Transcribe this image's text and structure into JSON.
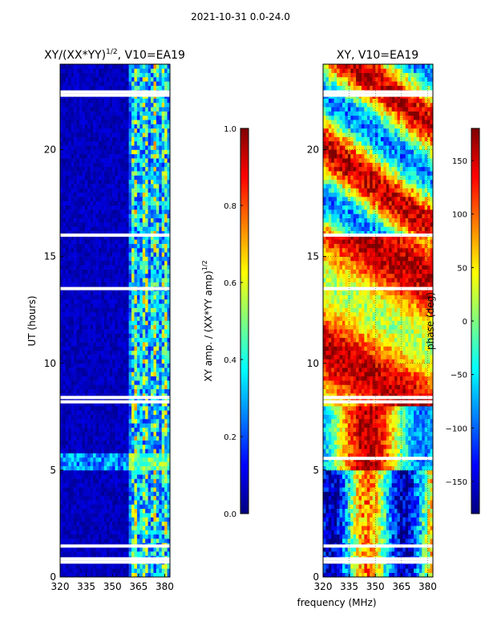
{
  "suptitle": "2021-10-31 0.0-24.0",
  "shared_xlabel": "frequency (MHz)",
  "colors": {
    "jet": [
      "#00007f",
      "#0000ff",
      "#007fff",
      "#00ffff",
      "#7fff7f",
      "#ffff00",
      "#ff7f00",
      "#ff0000",
      "#7f0000"
    ],
    "gap": "#ffffff"
  },
  "chart_data": [
    {
      "type": "heatmap",
      "title_main": "XY/(XX*YY)",
      "title_exp": "1/2",
      "title_suffix": ", V10=EA19",
      "xlabel": "",
      "ylabel": "UT (hours)",
      "xlim": [
        320,
        383
      ],
      "ylim": [
        0,
        24
      ],
      "xticks": [
        320,
        335,
        350,
        365,
        380
      ],
      "yticks": [
        0,
        5,
        10,
        15,
        20
      ],
      "colorbar": {
        "label_main": "XY amp. / (XX*YY amp)",
        "label_exp": "1/2",
        "range": [
          0.0,
          1.0
        ],
        "ticks": [
          "0.0",
          "0.2",
          "0.4",
          "0.6",
          "0.8",
          "1.0"
        ],
        "tick_values": [
          0.0,
          0.2,
          0.4,
          0.6,
          0.8,
          1.0
        ]
      },
      "data_gaps_hours": [
        0.7,
        0.85,
        1.45,
        8.2,
        8.4,
        13.5,
        16.0,
        22.55,
        22.7
      ],
      "notes": "Low values (~0.0-0.1) across 320-360 MHz; elevated values (~0.2-0.7) in vertical bands between ~360 and 380 MHz; band near 5.0-5.7 h shows higher values."
    },
    {
      "type": "heatmap",
      "title_main": "XY, V10=EA19",
      "xlabel": "",
      "ylabel": "",
      "xlim": [
        320,
        383
      ],
      "ylim": [
        0,
        24
      ],
      "xticks": [
        320,
        335,
        350,
        365,
        380
      ],
      "yticks": [
        0,
        5,
        10,
        15,
        20
      ],
      "colorbar": {
        "label_main": "phase (deg)",
        "range": [
          -180,
          180
        ],
        "ticks": [
          "−150",
          "−100",
          "−50",
          "0",
          "50",
          "100",
          "150"
        ],
        "tick_values": [
          -150,
          -100,
          -50,
          0,
          50,
          100,
          150
        ]
      },
      "data_gaps_hours": [
        0.7,
        0.85,
        1.45,
        5.55,
        8.2,
        8.4,
        13.5,
        16.0,
        22.55,
        22.7
      ],
      "notes": "Phase spans full range; structure varies with time and frequency."
    }
  ]
}
